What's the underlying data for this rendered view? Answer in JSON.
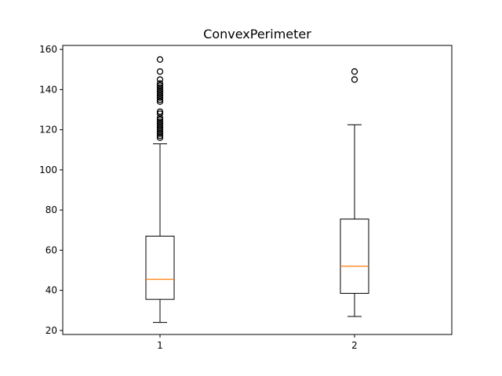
{
  "chart_data": {
    "type": "box",
    "title": "ConvexPerimeter",
    "xlabel": "",
    "ylabel": "",
    "ylim": [
      18,
      162
    ],
    "yticks": [
      20,
      40,
      60,
      80,
      100,
      120,
      140,
      160
    ],
    "ytick_labels": [
      "20",
      "40",
      "60",
      "80",
      "100",
      "120",
      "140",
      "160"
    ],
    "categories": [
      "1",
      "2"
    ],
    "boxes": [
      {
        "label": "1",
        "whisker_low": 24,
        "q1": 35.5,
        "median": 45.5,
        "q3": 67,
        "whisker_high": 113,
        "fliers": [
          116,
          117,
          118,
          119,
          120,
          121,
          122,
          123,
          124,
          125,
          126,
          128,
          129,
          134,
          135,
          136,
          137,
          138,
          139,
          140,
          141,
          142,
          143,
          145,
          149,
          155
        ]
      },
      {
        "label": "2",
        "whisker_low": 27,
        "q1": 38.5,
        "median": 52,
        "q3": 75.5,
        "whisker_high": 122.5,
        "fliers": [
          145,
          149
        ]
      }
    ],
    "grid": false,
    "median_color": "#ff7f0e",
    "box_color": "#000000"
  }
}
